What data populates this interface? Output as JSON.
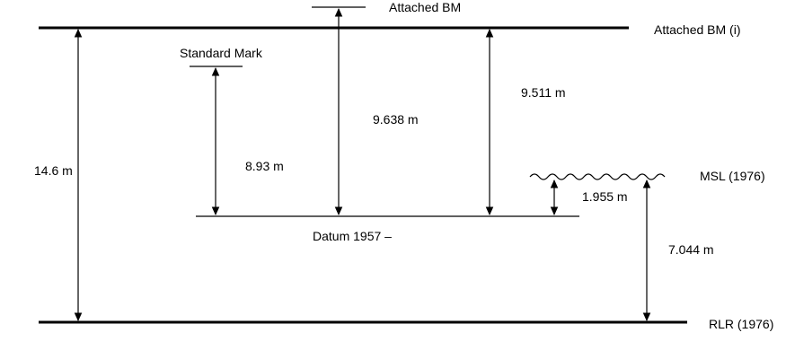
{
  "diagram": {
    "labels": {
      "attached_bm_top": "Attached BM",
      "attached_bm_i": "Attached BM (i)",
      "standard_mark": "Standard Mark",
      "datum": "Datum 1957 –",
      "msl": "MSL (1976)",
      "rlr": "RLR (1976)"
    },
    "measurements": {
      "rlr_to_bm_i": "14.6 m",
      "datum_to_standard_mark": "8.93 m",
      "datum_to_attached_bm": "9.638 m",
      "datum_to_bm_i": "9.511 m",
      "datum_to_msl": "1.955 m",
      "rlr_to_msl": "7.044 m"
    },
    "colors": {
      "ink": "#000000",
      "background": "#ffffff"
    }
  }
}
